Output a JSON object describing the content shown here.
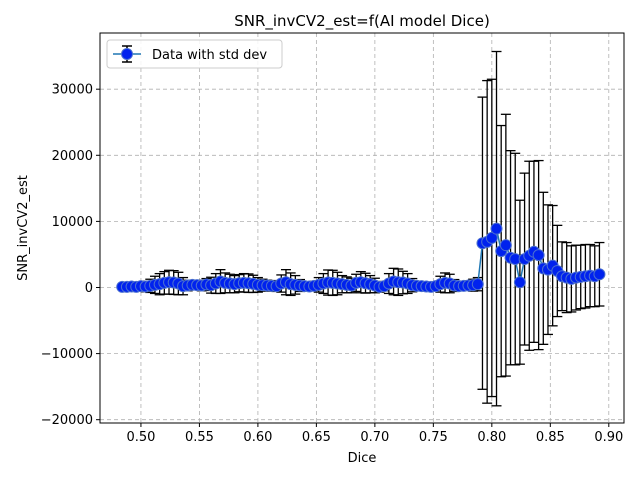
{
  "chart_data": {
    "type": "scatter",
    "title": "SNR_invCV2_est=f(AI model Dice)",
    "xlabel": "Dice",
    "ylabel": "SNR_invCV2_est",
    "xlim": [
      0.465,
      0.913
    ],
    "ylim": [
      -20500,
      38500
    ],
    "x_ticks": [
      0.5,
      0.55,
      0.6,
      0.65,
      0.7,
      0.75,
      0.8,
      0.85,
      0.9
    ],
    "x_tick_labels": [
      "0.50",
      "0.55",
      "0.60",
      "0.65",
      "0.70",
      "0.75",
      "0.80",
      "0.85",
      "0.90"
    ],
    "y_ticks": [
      -20000,
      -10000,
      0,
      10000,
      20000,
      30000
    ],
    "y_tick_labels": [
      "−20000",
      "−10000",
      "0",
      "10000",
      "20000",
      "30000"
    ],
    "grid": true,
    "legend": {
      "position": "top-left"
    },
    "colors": {
      "marker_fill": "#0022ee",
      "marker_edge": "#4a6fd0",
      "line": "#1f77b4",
      "errorbar": "#000000"
    },
    "series": [
      {
        "name": "Data with std dev",
        "x": [
          0.484,
          0.488,
          0.492,
          0.496,
          0.5,
          0.504,
          0.508,
          0.512,
          0.516,
          0.52,
          0.524,
          0.528,
          0.532,
          0.536,
          0.54,
          0.544,
          0.548,
          0.552,
          0.556,
          0.56,
          0.564,
          0.568,
          0.572,
          0.576,
          0.58,
          0.584,
          0.588,
          0.592,
          0.596,
          0.6,
          0.604,
          0.608,
          0.612,
          0.616,
          0.62,
          0.624,
          0.628,
          0.632,
          0.636,
          0.64,
          0.644,
          0.648,
          0.652,
          0.656,
          0.66,
          0.664,
          0.668,
          0.672,
          0.676,
          0.68,
          0.684,
          0.688,
          0.692,
          0.696,
          0.7,
          0.704,
          0.708,
          0.712,
          0.716,
          0.72,
          0.724,
          0.728,
          0.732,
          0.736,
          0.74,
          0.744,
          0.748,
          0.752,
          0.756,
          0.76,
          0.764,
          0.768,
          0.772,
          0.776,
          0.78,
          0.784,
          0.788,
          0.792,
          0.796,
          0.8,
          0.804,
          0.808,
          0.812,
          0.816,
          0.82,
          0.824,
          0.828,
          0.832,
          0.836,
          0.84,
          0.844,
          0.848,
          0.852,
          0.856,
          0.86,
          0.864,
          0.868,
          0.872,
          0.876,
          0.88,
          0.884,
          0.888,
          0.892
        ],
        "y": [
          100,
          100,
          150,
          100,
          200,
          150,
          250,
          400,
          500,
          700,
          800,
          750,
          600,
          200,
          300,
          400,
          350,
          300,
          450,
          350,
          600,
          900,
          700,
          600,
          500,
          650,
          700,
          650,
          550,
          400,
          350,
          300,
          250,
          200,
          600,
          800,
          500,
          400,
          300,
          200,
          150,
          250,
          400,
          600,
          750,
          700,
          600,
          500,
          400,
          300,
          700,
          800,
          650,
          500,
          300,
          100,
          200,
          600,
          900,
          800,
          750,
          600,
          350,
          250,
          200,
          150,
          100,
          200,
          500,
          700,
          600,
          300,
          200,
          250,
          300,
          350,
          500,
          6700,
          6900,
          7500,
          8900,
          5500,
          6400,
          4500,
          4300,
          800,
          4300,
          4800,
          5400,
          4900,
          2900,
          2700,
          3300,
          2500,
          1700,
          1500,
          1300,
          1500,
          1600,
          1700,
          1800,
          1700,
          2000
        ],
        "err": [
          200,
          300,
          400,
          500,
          600,
          800,
          1000,
          1300,
          1600,
          1700,
          1800,
          1800,
          1700,
          1300,
          800,
          700,
          700,
          800,
          900,
          1200,
          1500,
          1800,
          1500,
          1400,
          1300,
          1300,
          1400,
          1400,
          1300,
          1100,
          900,
          800,
          800,
          800,
          1300,
          1900,
          1700,
          1400,
          900,
          600,
          500,
          700,
          1100,
          1500,
          1900,
          1900,
          1700,
          1300,
          1200,
          1100,
          1300,
          1600,
          1500,
          1300,
          1100,
          800,
          700,
          1500,
          2000,
          2000,
          1700,
          1500,
          1000,
          700,
          500,
          400,
          300,
          500,
          1200,
          1500,
          1400,
          900,
          500,
          500,
          700,
          900,
          1000,
          22100,
          24400,
          24000,
          26800,
          19000,
          19800,
          16200,
          16000,
          12400,
          13000,
          14300,
          13700,
          14300,
          11500,
          9800,
          9100,
          6900,
          5200,
          5300,
          5000,
          4900,
          4800,
          4800,
          4700,
          4600,
          4800
        ]
      }
    ]
  }
}
